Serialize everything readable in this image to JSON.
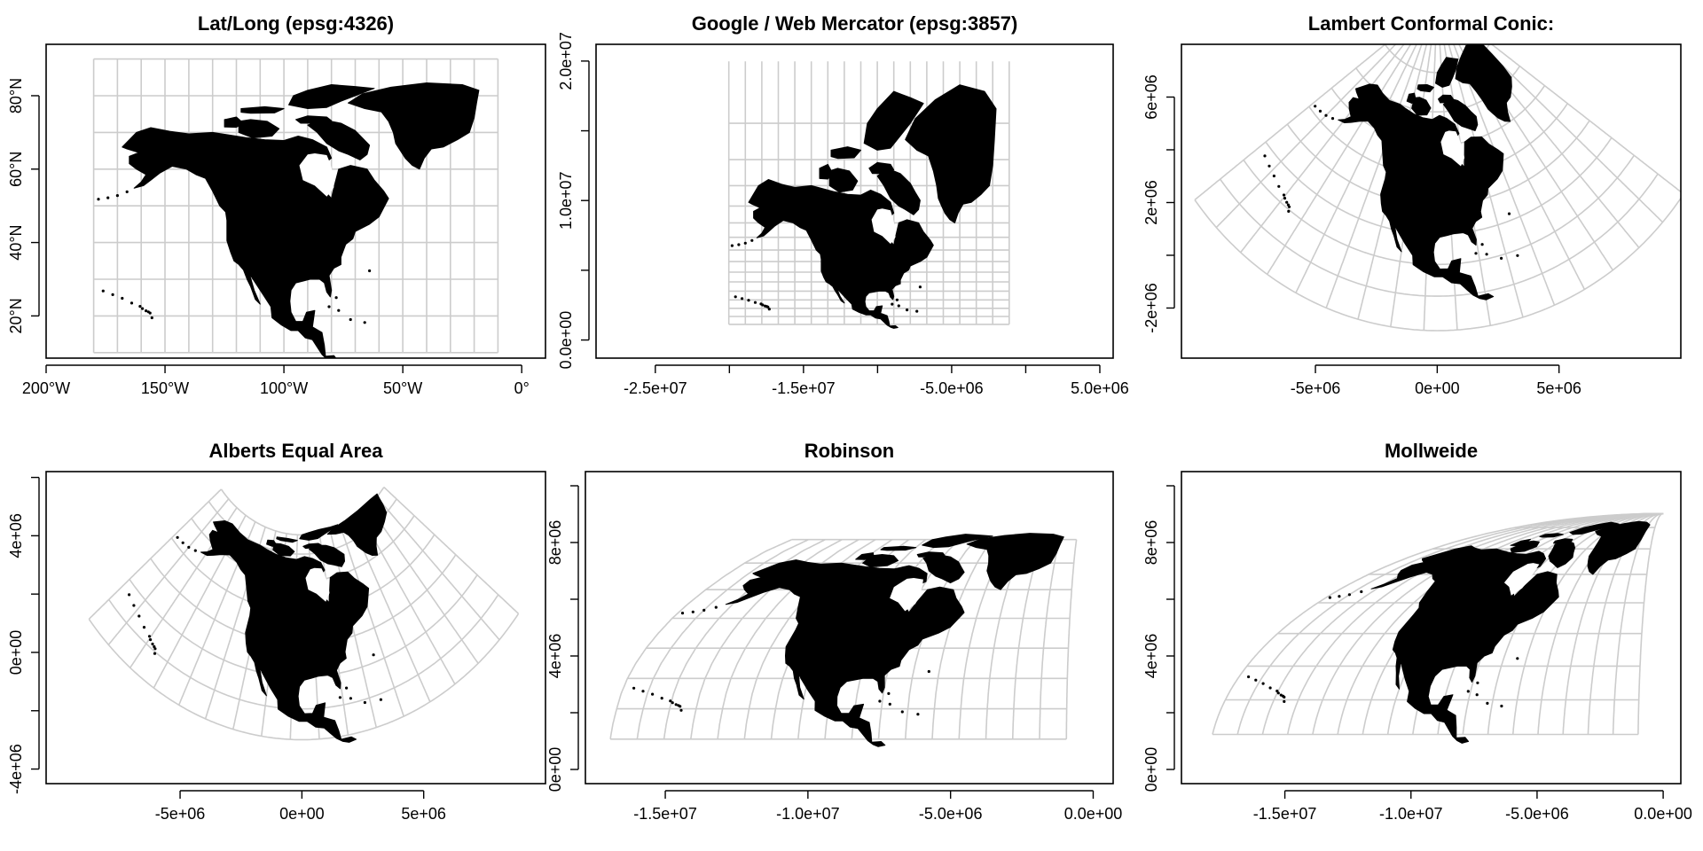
{
  "chart_data": [
    {
      "type": "map",
      "title": "Lat/Long (epsg:4326)",
      "x_ticks": [
        "200°W",
        "150°W",
        "100°W",
        "50°W",
        "0°"
      ],
      "y_ticks": [
        "20°N",
        "40°N",
        "60°N",
        "80°N"
      ]
    },
    {
      "type": "map",
      "title": "Google / Web Mercator (epsg:3857)",
      "x_ticks": [
        "-2.5e+07",
        "-1.5e+07",
        "-5.0e+06",
        "5.0e+06"
      ],
      "y_ticks": [
        "0.0e+00",
        "1.0e+07",
        "2.0e+07"
      ]
    },
    {
      "type": "map",
      "title": "Lambert Conformal Conic:",
      "x_ticks": [
        "-5e+06",
        "0e+00",
        "5e+06"
      ],
      "y_ticks": [
        "-2e+06",
        "2e+06",
        "6e+06"
      ]
    },
    {
      "type": "map",
      "title": "Alberts Equal Area",
      "x_ticks": [
        "-5e+06",
        "0e+00",
        "5e+06"
      ],
      "y_ticks": [
        "-4e+06",
        "0e+00",
        "4e+06"
      ]
    },
    {
      "type": "map",
      "title": "Robinson",
      "x_ticks": [
        "-1.5e+07",
        "-1.0e+07",
        "-5.0e+06",
        "0.0e+00"
      ],
      "y_ticks": [
        "0e+00",
        "4e+06",
        "8e+06"
      ]
    },
    {
      "type": "map",
      "title": "Mollweide",
      "x_ticks": [
        "-1.5e+07",
        "-1.0e+07",
        "-5.0e+06",
        "0.0e+00"
      ],
      "y_ticks": [
        "0e+00",
        "4e+06",
        "8e+06"
      ]
    }
  ],
  "colors": {
    "land": "#000000",
    "graticule": "#cccccc",
    "frame": "#000000"
  }
}
